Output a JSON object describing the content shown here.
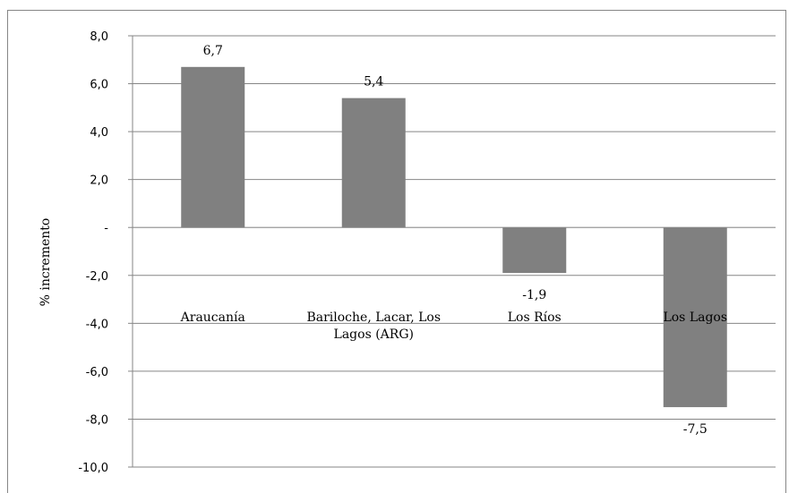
{
  "chart_data": {
    "type": "bar",
    "categories": [
      [
        "Araucanía"
      ],
      [
        "Bariloche, Lacar, Los",
        "Lagos (ARG)"
      ],
      [
        "Los Ríos"
      ],
      [
        "Los Lagos"
      ]
    ],
    "values": [
      6.7,
      5.4,
      -1.9,
      -7.5
    ],
    "value_labels": [
      "6,7",
      "5,4",
      "-1,9",
      "-7,5"
    ],
    "ylabel": "% incremento",
    "xlabel": "",
    "title": "",
    "ylim": [
      -10,
      8
    ],
    "yticks": [
      8,
      6,
      4,
      2,
      0,
      -2,
      -4,
      -6,
      -8,
      -10
    ],
    "ytick_labels": [
      "8,0",
      "6,0",
      "4,0",
      "2,0",
      "-",
      "-2,0",
      "-4,0",
      "-6,0",
      "-8,0",
      "-10,0"
    ],
    "grid": true,
    "legend": "none",
    "bar_color": "#808080",
    "grid_color": "#868686"
  }
}
